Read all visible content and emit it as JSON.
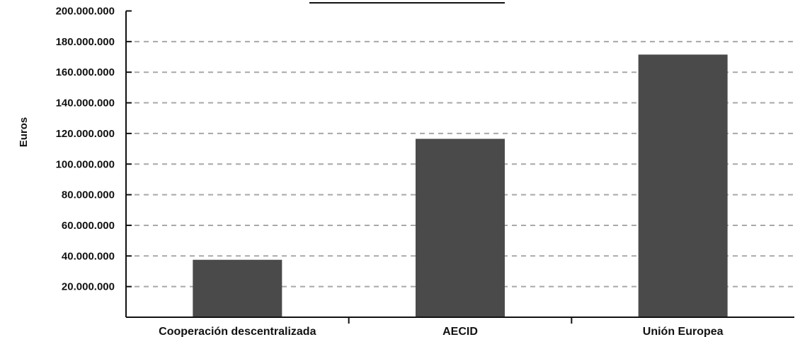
{
  "chart_data": {
    "type": "bar",
    "title": "",
    "xlabel": "",
    "ylabel": "Euros",
    "categories": [
      "Cooperación descentralizada",
      "AECID",
      "Unión Europea"
    ],
    "values": [
      37500000,
      116500000,
      171500000
    ],
    "ylim": [
      0,
      200000000
    ],
    "yticks": [
      {
        "value": 20000000,
        "label": "20.000.000"
      },
      {
        "value": 40000000,
        "label": "40.000.000"
      },
      {
        "value": 60000000,
        "label": "60.000.000"
      },
      {
        "value": 80000000,
        "label": "80.000.000"
      },
      {
        "value": 100000000,
        "label": "100.000.000"
      },
      {
        "value": 120000000,
        "label": "120.000.000"
      },
      {
        "value": 140000000,
        "label": "140.000.000"
      },
      {
        "value": 160000000,
        "label": "160.000.000"
      },
      {
        "value": 180000000,
        "label": "180.000.000"
      },
      {
        "value": 200000000,
        "label": "200.000.000"
      }
    ],
    "grid": "horizontal-dashed",
    "colors": {
      "bar": "#4a4a4a",
      "grid": "#a8a8a8",
      "axis": "#111111"
    }
  }
}
